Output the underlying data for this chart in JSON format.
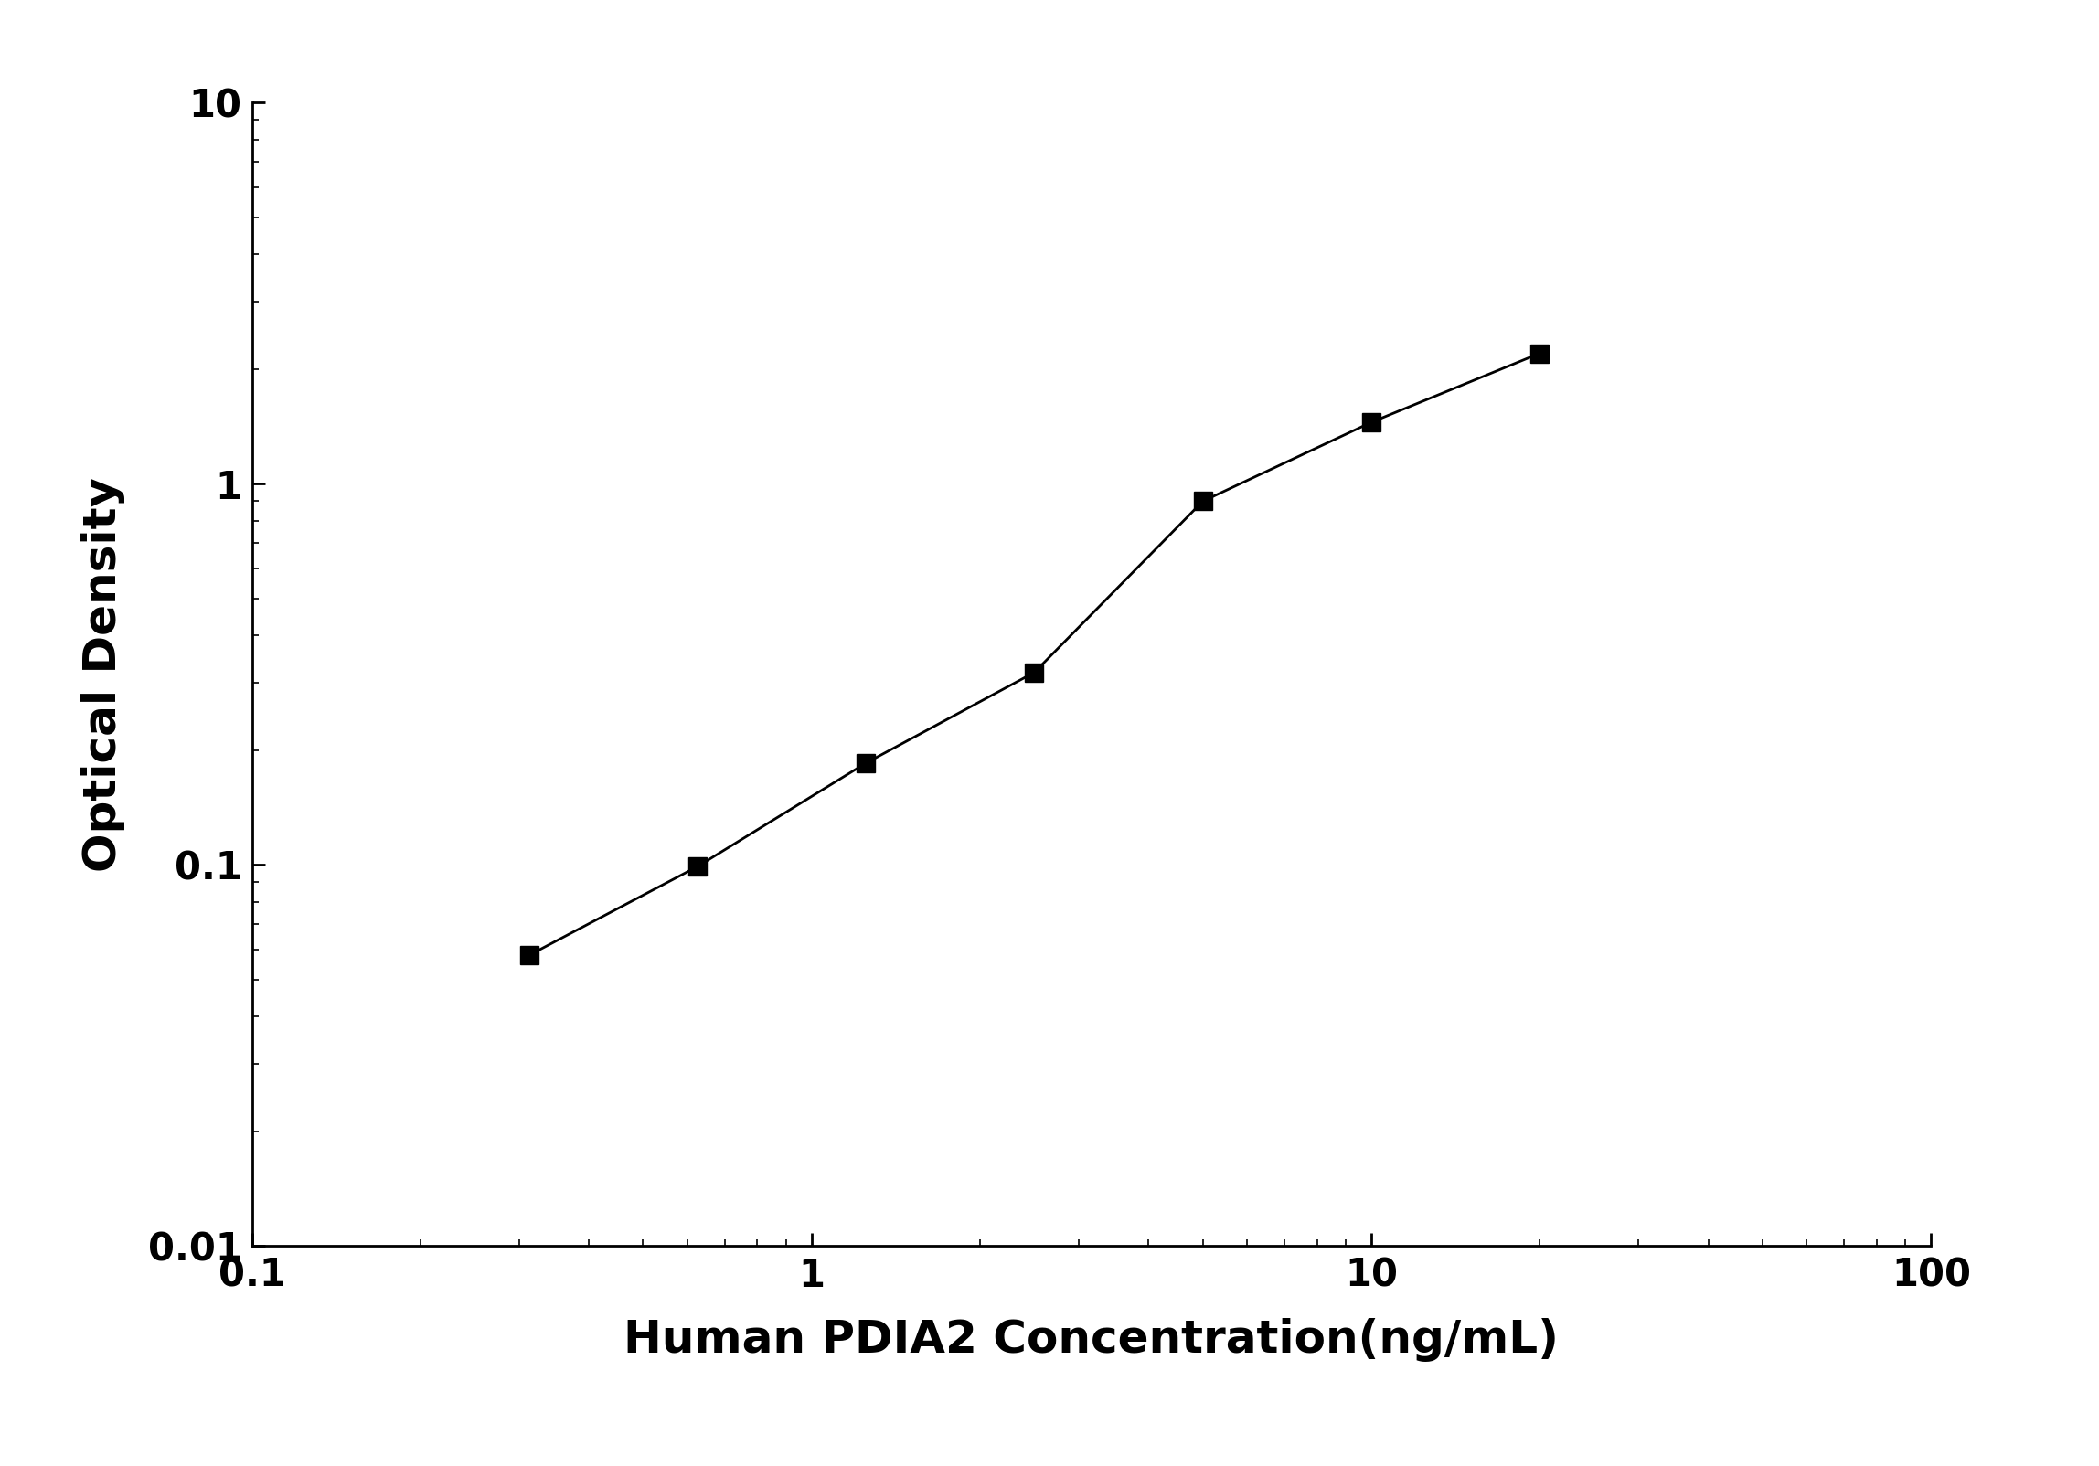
{
  "x_data": [
    0.313,
    0.625,
    1.25,
    2.5,
    5.0,
    10.0,
    20.0
  ],
  "y_data": [
    0.058,
    0.099,
    0.185,
    0.32,
    0.9,
    1.45,
    2.2
  ],
  "xlabel": "Human PDIA2 Concentration(ng/mL)",
  "ylabel": "Optical Density",
  "xlim": [
    0.1,
    100
  ],
  "ylim": [
    0.01,
    10
  ],
  "line_color": "#000000",
  "marker": "s",
  "marker_color": "#000000",
  "marker_size": 14,
  "line_width": 2.0,
  "xlabel_fontsize": 36,
  "ylabel_fontsize": 36,
  "tick_fontsize": 30,
  "axis_linewidth": 2.0,
  "background_color": "#ffffff"
}
